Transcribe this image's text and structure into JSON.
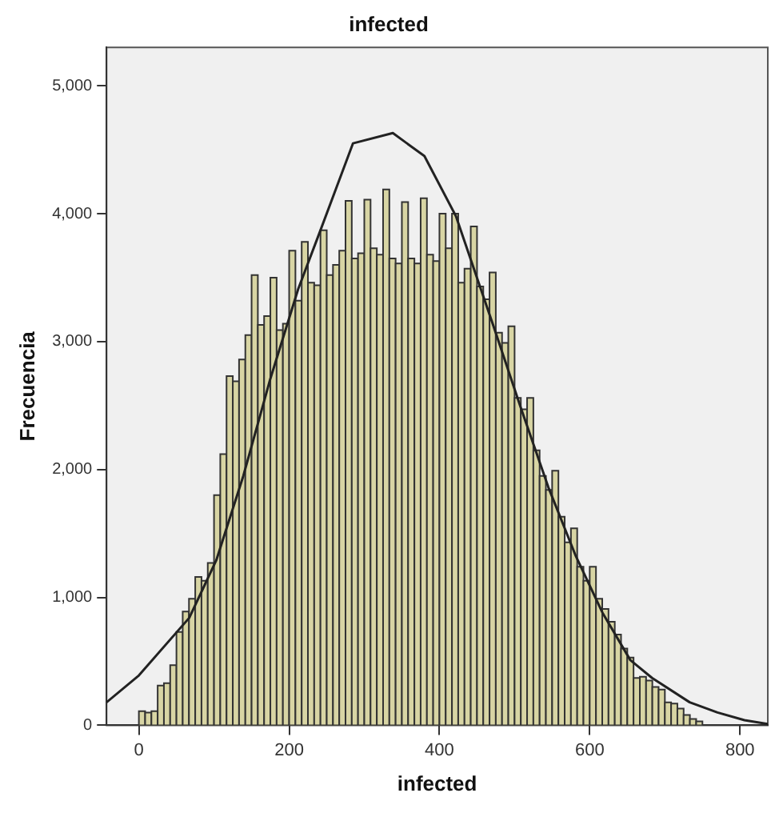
{
  "chart_data": {
    "type": "histogram",
    "title": "infected",
    "xlabel": "infected",
    "ylabel": "Frecuencia",
    "bins": [
      0,
      8.33,
      16.67,
      25,
      33.33,
      41.67,
      50,
      58.33,
      66.67,
      75,
      83.33,
      91.67,
      100,
      108.33,
      116.67,
      125,
      133.33,
      141.67,
      150,
      158.33,
      166.67,
      175,
      183.33,
      191.67,
      200,
      208.33,
      216.67,
      225,
      233.33,
      241.67,
      250,
      258.33,
      266.67,
      275,
      283.33,
      291.67,
      300,
      308.33,
      316.67,
      325,
      333.33,
      341.67,
      350,
      358.33,
      366.67,
      375,
      383.33,
      391.67,
      400,
      408.33,
      416.67,
      425,
      433.33,
      441.67,
      450,
      458.33,
      466.67,
      475,
      483.33,
      491.67,
      500,
      508.33,
      516.67,
      525,
      533.33,
      541.67,
      550,
      558.33,
      566.67,
      575,
      583.33,
      591.67,
      600,
      608.33,
      616.67,
      625,
      633.33,
      641.67,
      650,
      658.33,
      666.67,
      675,
      683.33,
      691.67,
      700,
      708.33,
      716.67,
      725,
      733.33,
      741.67,
      750
    ],
    "values": [
      110,
      100,
      110,
      310,
      330,
      470,
      730,
      890,
      990,
      1160,
      1130,
      1270,
      1800,
      2120,
      2730,
      2690,
      2860,
      3050,
      3520,
      3130,
      3200,
      3500,
      3090,
      3140,
      3710,
      3320,
      3780,
      3460,
      3440,
      3870,
      3520,
      3600,
      3710,
      4100,
      3650,
      3690,
      4110,
      3730,
      3680,
      4190,
      3650,
      3610,
      4090,
      3650,
      3610,
      4120,
      3680,
      3630,
      4000,
      3730,
      4000,
      3460,
      3570,
      3900,
      3430,
      3330,
      3540,
      3070,
      2990,
      3120,
      2560,
      2470,
      2560,
      2150,
      1950,
      1840,
      1990,
      1630,
      1430,
      1540,
      1240,
      1130,
      1240,
      990,
      910,
      810,
      710,
      600,
      530,
      370,
      380,
      350,
      300,
      280,
      180,
      170,
      130,
      80,
      50,
      30
    ],
    "color": "#d8d5a4",
    "series": [
      {
        "type": "line",
        "color": "#222222",
        "x": [
          -43,
          0,
          67,
          103,
          139,
          175,
          212,
          241,
          285,
          338,
          380,
          422,
          472,
          509,
          545,
          581,
          617,
          654,
          683,
          733,
          770,
          806,
          837
        ],
        "values": [
          180,
          390,
          840,
          1290,
          1950,
          2710,
          3410,
          3860,
          4550,
          4630,
          4450,
          3980,
          3120,
          2470,
          1860,
          1330,
          880,
          510,
          370,
          180,
          100,
          40,
          10
        ]
      }
    ],
    "xlim": [
      -43,
      837
    ],
    "xticks": [
      0,
      200,
      400,
      600,
      800
    ],
    "ylim": [
      0,
      5300
    ],
    "yticks": [
      0,
      {
        "value": 1000,
        "label": "1,000"
      },
      {
        "value": 2000,
        "label": "2,000"
      },
      {
        "value": 3000,
        "label": "3,000"
      },
      {
        "value": 4000,
        "label": "4,000"
      },
      {
        "value": 5000,
        "label": "5,000"
      }
    ],
    "grid": false,
    "legend": false,
    "marker": "none",
    "line_style": "solid"
  }
}
